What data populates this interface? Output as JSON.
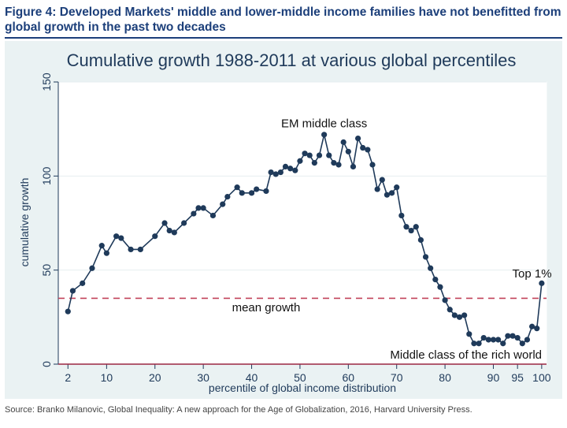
{
  "figure": {
    "title": "Figure 4: Developed Markets' middle and lower-middle income families have not benefitted from global growth in the past two decades",
    "source": "Source: Branko Milanovic, Global Inequality: A new approach for the Age of Globalization, 2016, Harvard University Press."
  },
  "chart_data": {
    "type": "line",
    "title": "Cumulative growth 1988-2011 at various global percentiles",
    "xlabel": "percentile of global income distribution",
    "ylabel": "cumulative growth",
    "xlim": [
      0,
      101
    ],
    "ylim": [
      0,
      150
    ],
    "xticks": [
      2,
      10,
      20,
      30,
      40,
      50,
      60,
      70,
      80,
      90,
      95,
      100
    ],
    "yticks": [
      0,
      50,
      100,
      150
    ],
    "grid": true,
    "series": [
      {
        "color": "#1f3a5a",
        "x": [
          2,
          3,
          5,
          7,
          9,
          10,
          12,
          13,
          15,
          17,
          20,
          22,
          23,
          24,
          26,
          28,
          29,
          30,
          32,
          34,
          35,
          37,
          38,
          40,
          41,
          43,
          44,
          45,
          46,
          47,
          48,
          49,
          50,
          51,
          52,
          53,
          54,
          55,
          56,
          57,
          58,
          59,
          60,
          61,
          62,
          63,
          64,
          65,
          66,
          67,
          68,
          69,
          70,
          71,
          72,
          73,
          74,
          75,
          76,
          77,
          78,
          79,
          80,
          81,
          82,
          83,
          84,
          85,
          86,
          87,
          88,
          89,
          90,
          91,
          92,
          93,
          94,
          95,
          96,
          97,
          98,
          99,
          100
        ],
        "y": [
          28,
          39,
          43,
          51,
          63,
          59,
          68,
          67,
          61,
          61,
          68,
          75,
          71,
          70,
          75,
          80,
          83,
          83,
          79,
          85,
          89,
          94,
          91,
          91,
          93,
          92,
          102,
          101,
          102,
          105,
          104,
          103,
          108,
          112,
          111,
          107,
          111,
          122,
          111,
          107,
          106,
          118,
          113,
          105,
          120,
          115,
          114,
          106,
          93,
          98,
          90,
          91,
          94,
          79,
          73,
          71,
          73,
          66,
          57,
          51,
          45,
          41,
          34,
          29,
          26,
          25,
          26,
          16,
          11,
          11,
          14,
          13,
          13,
          13,
          11,
          15,
          15,
          14,
          11,
          13,
          20,
          19,
          43
        ],
        "markers": true
      }
    ],
    "reference_lines": [
      {
        "label": "mean growth",
        "y": 35,
        "style": "dashed",
        "color": "#c2425a"
      },
      {
        "label": "",
        "y": 0,
        "style": "solid",
        "color": "#9b2742"
      }
    ],
    "annotations": [
      {
        "text": "EM middle class",
        "x": 55,
        "y": 126
      },
      {
        "text": "Top 1%",
        "x": 98,
        "y": 46
      },
      {
        "text": "mean growth",
        "x": 43,
        "y": 28
      },
      {
        "text": "Middle class of the rich world",
        "x": 85,
        "y": 3
      }
    ]
  }
}
